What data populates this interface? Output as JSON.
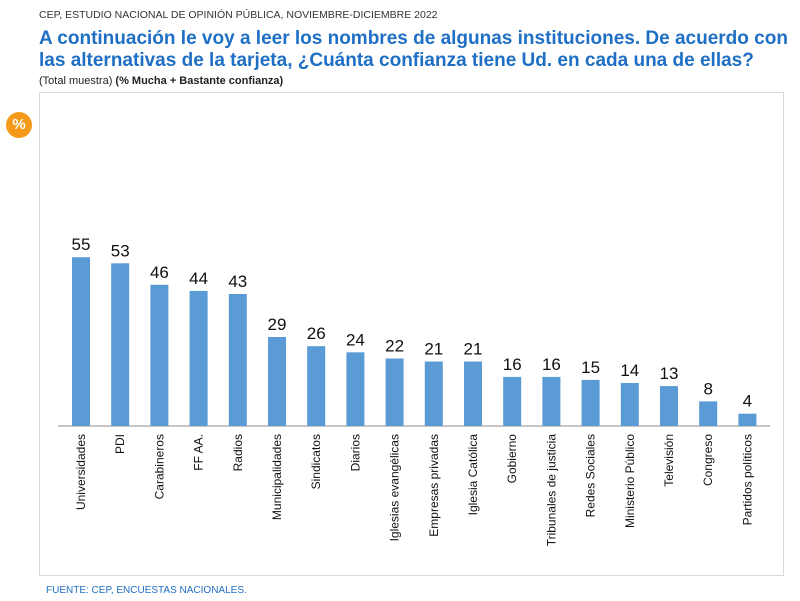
{
  "header": {
    "source_line": "CEP, ESTUDIO NACIONAL DE OPINIÓN PÚBLICA, NOVIEMBRE-DICIEMBRE 2022",
    "title": "A continuación le voy a leer los nombres de algunas instituciones. De acuerdo con las alternativas de la tarjeta, ¿Cuánta confianza tiene Ud. en cada una de ellas?",
    "subtitle_prefix": "(Total muestra)",
    "subtitle_bold": "(% Mucha + Bastante confianza)"
  },
  "badge": {
    "text": "%",
    "color": "#f59a1b"
  },
  "footer": {
    "text": "FUENTE: CEP, ENCUESTAS NACIONALES."
  },
  "colors": {
    "bar": "#5b9bd5",
    "title": "#1f6fc4"
  },
  "chart_data": {
    "type": "bar",
    "title": "",
    "xlabel": "",
    "ylabel": "",
    "ylim": [
      0,
      60
    ],
    "grid": false,
    "categories": [
      "Universidades",
      "PDI",
      "Carabineros",
      "FF AA.",
      "Radios",
      "Municipalidades",
      "Sindicatos",
      "Diarios",
      "Iglesias evangélicas",
      "Empresas privadas",
      "Iglesia Católica",
      "Gobierno",
      "Tribunales de justicia",
      "Redes Sociales",
      "Ministerio Público",
      "Televisión",
      "Congreso",
      "Partidos políticos"
    ],
    "values": [
      55,
      53,
      46,
      44,
      43,
      29,
      26,
      24,
      22,
      21,
      21,
      16,
      16,
      15,
      14,
      13,
      8,
      4
    ]
  }
}
